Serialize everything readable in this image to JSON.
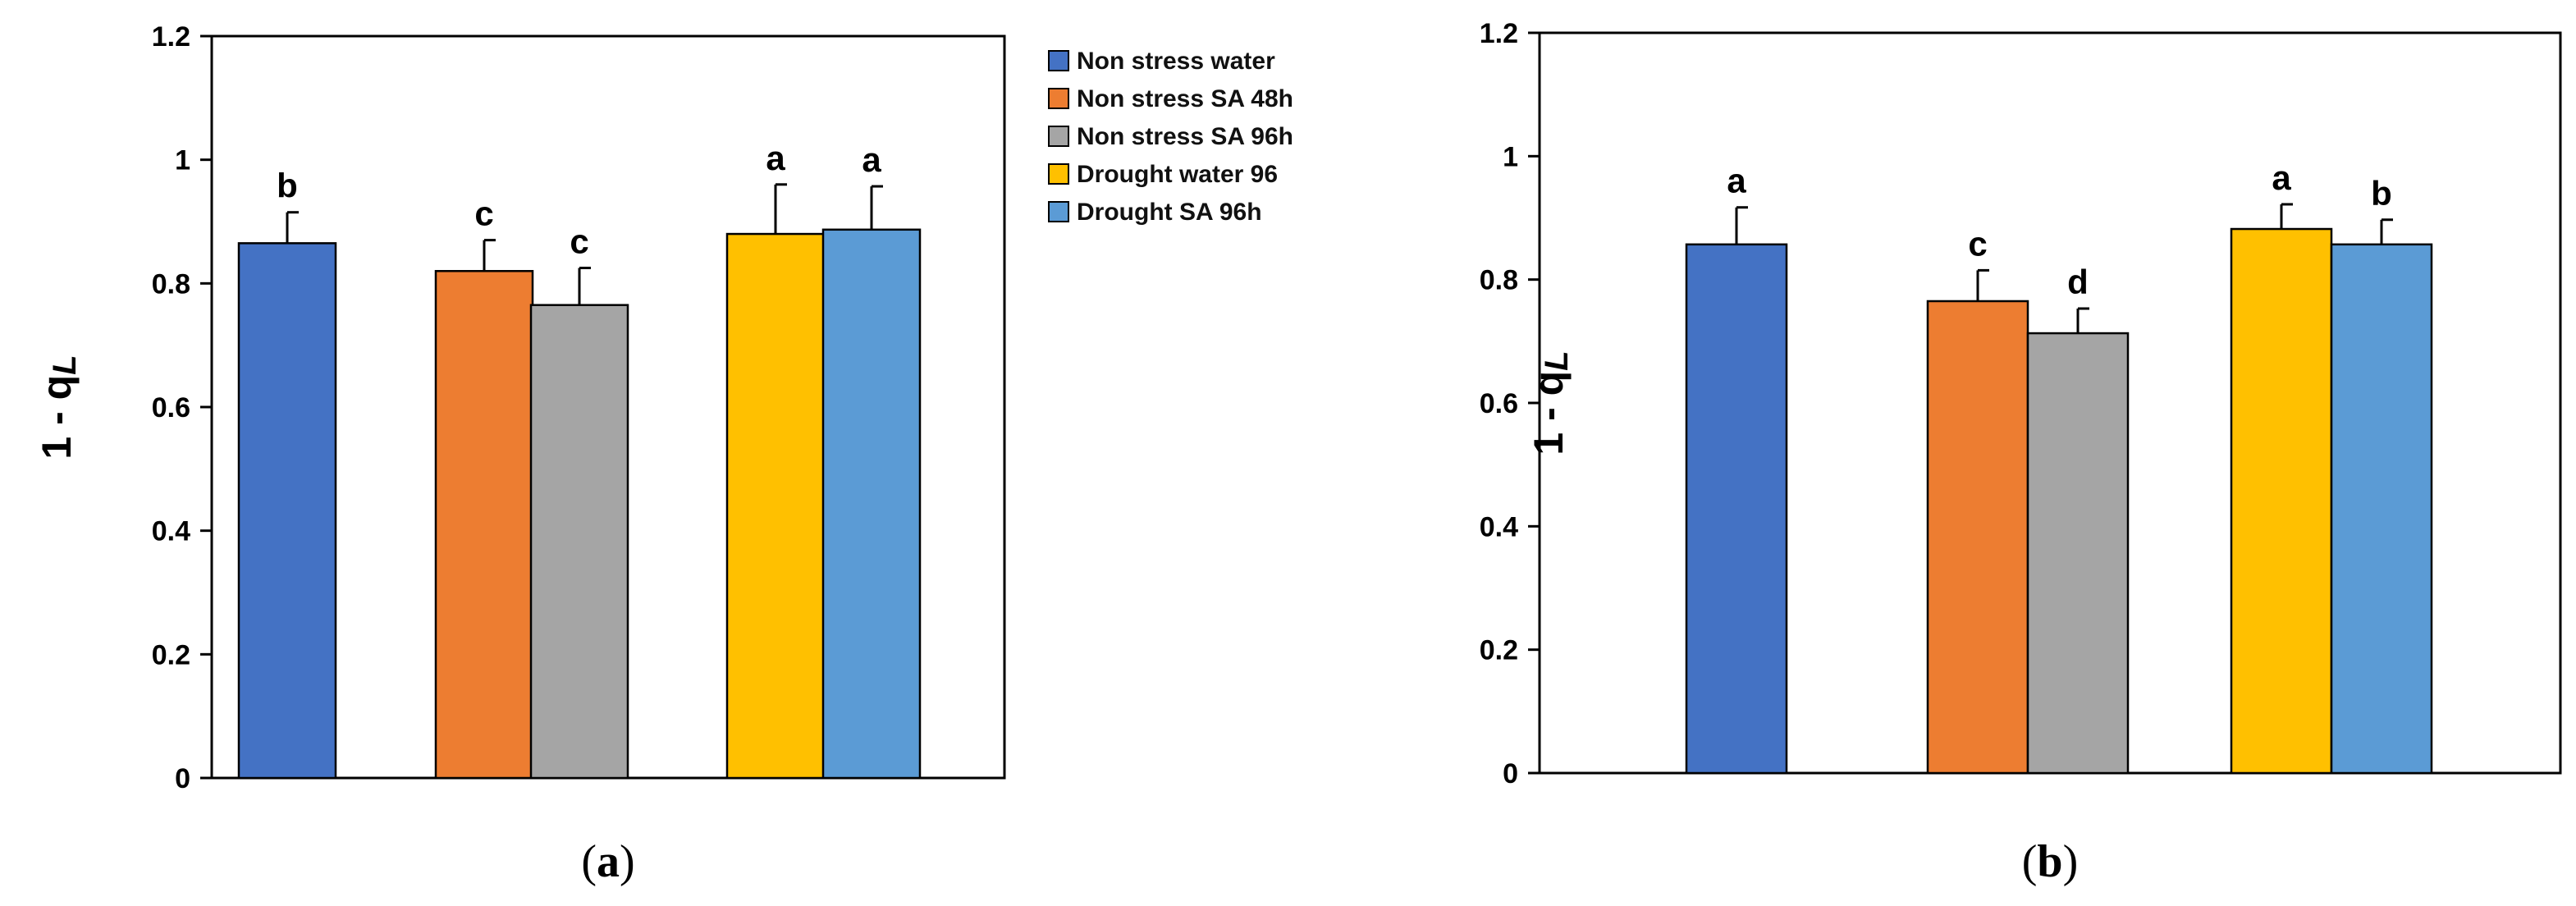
{
  "chart_data": [
    {
      "type": "bar",
      "panel": "a",
      "caption": {
        "open": "(",
        "letter": "a",
        "close": ")"
      },
      "ylabel": {
        "main": "1 - q",
        "sub": "L"
      },
      "ylim": [
        0,
        1.2
      ],
      "yticks": [
        "0",
        "0.2",
        "0.4",
        "0.6",
        "0.8",
        "1",
        "1.2"
      ],
      "series": [
        {
          "name": "Non stress water",
          "value": 0.865,
          "error": 0.05,
          "letter": "b",
          "color": "#4472C4"
        },
        {
          "name": "Non stress SA 48h",
          "value": 0.82,
          "error": 0.05,
          "letter": "c",
          "color": "#ED7D31"
        },
        {
          "name": "Non stress SA 96h",
          "value": 0.765,
          "error": 0.06,
          "letter": "c",
          "color": "#A5A5A5"
        },
        {
          "name": "Drought water 96",
          "value": 0.88,
          "error": 0.08,
          "letter": "a",
          "color": "#FFC000"
        },
        {
          "name": "Drought SA 96h",
          "value": 0.887,
          "error": 0.07,
          "letter": "a",
          "color": "#5B9BD5"
        }
      ],
      "legend": "right"
    },
    {
      "type": "bar",
      "panel": "b",
      "caption": {
        "open": "(",
        "letter": "b",
        "close": ")"
      },
      "ylabel": {
        "main": "1 - q",
        "sub": "L"
      },
      "ylim": [
        0,
        1.2
      ],
      "yticks": [
        "0",
        "0.2",
        "0.4",
        "0.6",
        "0.8",
        "1",
        "1.2"
      ],
      "series": [
        {
          "name": "Non stress water",
          "value": 0.857,
          "error": 0.06,
          "letter": "a",
          "color": "#4472C4"
        },
        {
          "name": "Non stress SA 48h",
          "value": 0.765,
          "error": 0.05,
          "letter": "c",
          "color": "#ED7D31"
        },
        {
          "name": "Non stress SA 96h",
          "value": 0.713,
          "error": 0.04,
          "letter": "d",
          "color": "#A5A5A5"
        },
        {
          "name": "Drought water 96",
          "value": 0.882,
          "error": 0.04,
          "letter": "a",
          "color": "#FFC000"
        },
        {
          "name": "Drought SA 96h",
          "value": 0.857,
          "error": 0.04,
          "letter": "b",
          "color": "#5B9BD5"
        }
      ]
    }
  ]
}
